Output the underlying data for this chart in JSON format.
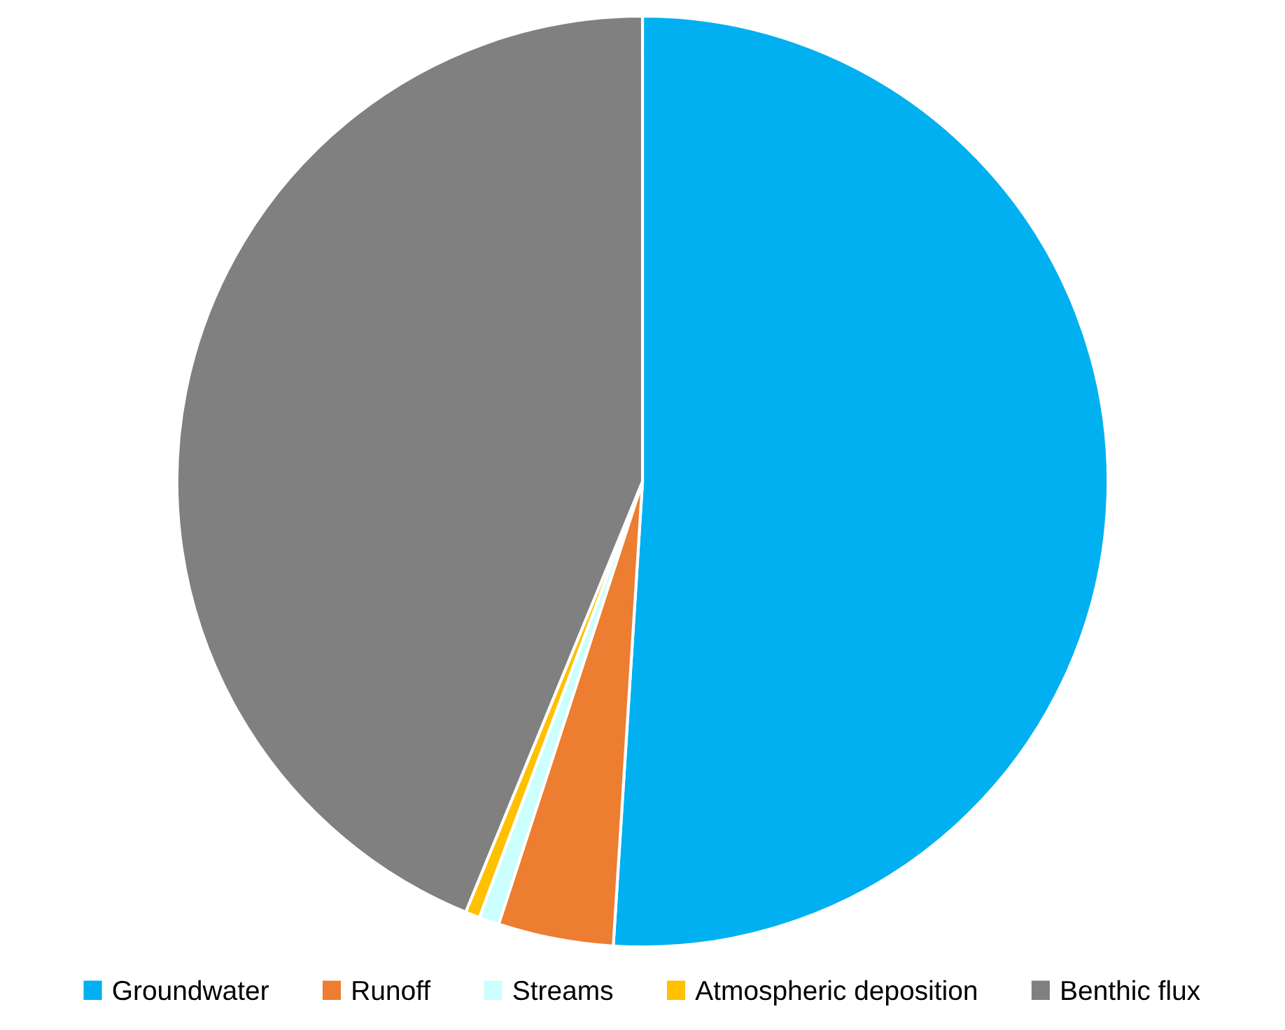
{
  "chart_data": {
    "type": "pie",
    "categories": [
      "Groundwater",
      "Runoff",
      "Streams",
      "Atmospheric deposition",
      "Benthic flux"
    ],
    "values": [
      51,
      4,
      0.7,
      0.5,
      43.8
    ],
    "colors": [
      "#00b0f0",
      "#ed7d31",
      "#ccffff",
      "#ffc000",
      "#808080"
    ],
    "legend": "bottom"
  }
}
